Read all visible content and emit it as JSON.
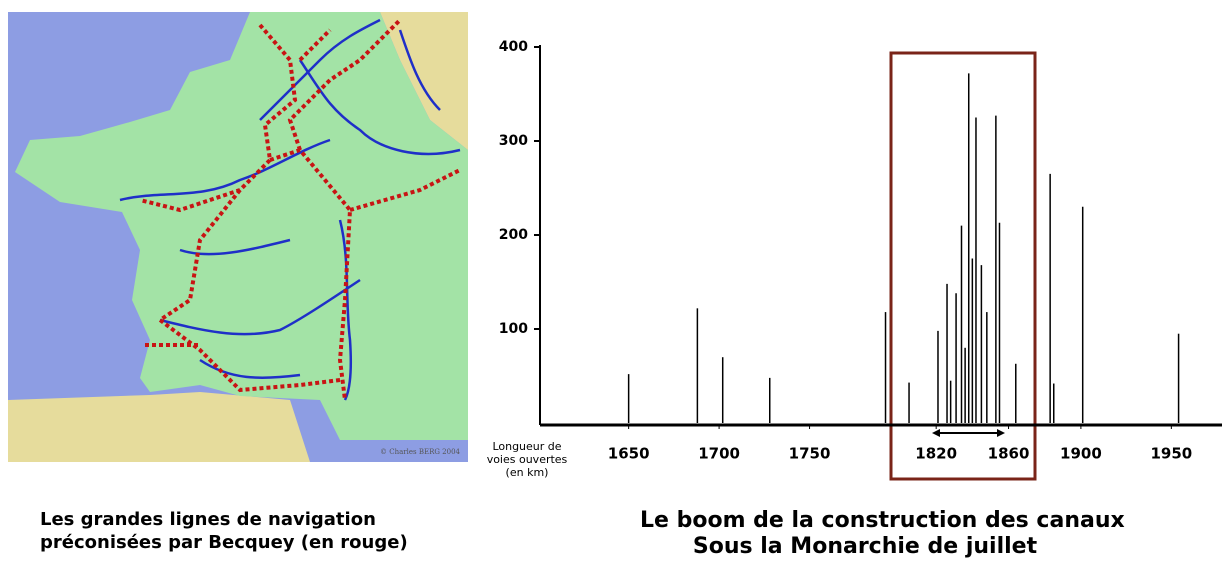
{
  "map": {
    "credit": "© Charles BERG 2004",
    "caption": [
      "Les grandes lignes de navigation",
      "préconisées par Becquey (en rouge)"
    ]
  },
  "chart_data": {
    "type": "spike",
    "y_label": "Longueur de voies ouvertes (en km)",
    "caption": [
      "Le boom de la construction des canaux",
      "Sous la Monarchie de juillet"
    ],
    "x": [
      1650,
      1688,
      1702,
      1728,
      1792,
      1805,
      1821,
      1826,
      1828,
      1831,
      1834,
      1836,
      1838,
      1840,
      1842,
      1845,
      1848,
      1853,
      1855,
      1864,
      1883,
      1885,
      1901,
      1954
    ],
    "values": [
      52,
      122,
      70,
      48,
      118,
      43,
      98,
      148,
      45,
      138,
      210,
      80,
      372,
      175,
      325,
      168,
      118,
      327,
      213,
      63,
      265,
      42,
      230,
      95
    ],
    "color": "#000000",
    "xlim": [
      1601,
      1978
    ],
    "xticks": [
      1650,
      1700,
      1750,
      1820,
      1860,
      1900,
      1950
    ],
    "ylim": [
      0,
      400
    ],
    "yticks": [
      100,
      200,
      300,
      400
    ]
  }
}
